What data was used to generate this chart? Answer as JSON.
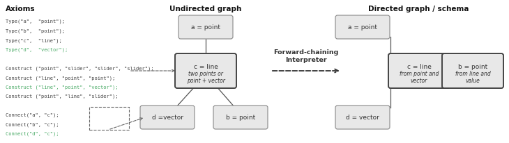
{
  "bg_color": "#ffffff",
  "node_fill": "#e8e8e8",
  "node_edge": "#888888",
  "node_edge_bold": "#444444",
  "text_color": "#333333",
  "green_color": "#4aaa66",
  "forward_label": "Forward-chaining\nInterpreter",
  "axiom_lines": [
    {
      "text": "Type(\"a\",  \"point\");",
      "color": "black"
    },
    {
      "text": "Type(\"b\",  \"point\");",
      "color": "black"
    },
    {
      "text": "Type(\"c\",  \"line\");",
      "color": "black"
    },
    {
      "text": "Type(\"d\",  \"vector\");",
      "color": "green"
    },
    {
      "text": "",
      "color": "black"
    },
    {
      "text": "Construct (\"point\", \"slider\", \"slider\", \"slider\");",
      "color": "black"
    },
    {
      "text": "Construct (\"line\", \"point\", \"point\");",
      "color": "black"
    },
    {
      "text": "Construct (\"line\", \"point\", \"vector\");",
      "color": "green"
    },
    {
      "text": "Construct (\"point\", \"line\", \"slider\");",
      "color": "black"
    },
    {
      "text": "",
      "color": "black"
    },
    {
      "text": "Connect(\"a\", \"c\");",
      "color": "black"
    },
    {
      "text": "Connect(\"b\", \"c\");",
      "color": "black"
    },
    {
      "text": "Connect(\"d\", \"c\");",
      "color": "green"
    }
  ]
}
